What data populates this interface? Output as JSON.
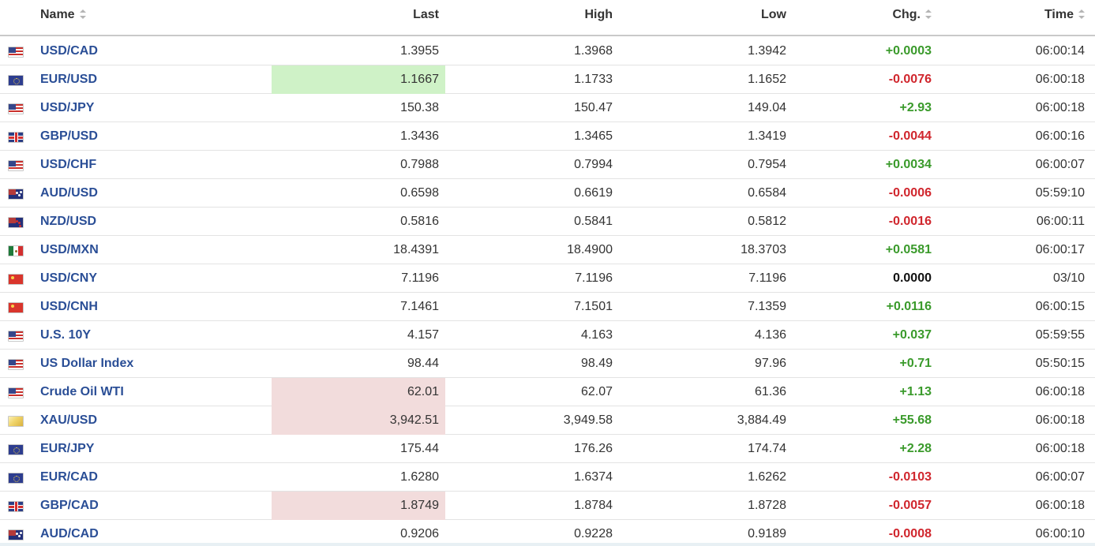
{
  "header": {
    "name": "Name",
    "last": "Last",
    "high": "High",
    "low": "Low",
    "chg": "Chg.",
    "time": "Time"
  },
  "colors": {
    "positive": "#3a9a2b",
    "negative": "#d0262d",
    "name_link": "#2a4e96",
    "highlight_up": "#cff2c7",
    "highlight_down": "#f2dcdc"
  },
  "rows": [
    {
      "flag": "us-flag-icon",
      "name": "USD/CAD",
      "last": "1.3955",
      "high": "1.3968",
      "low": "1.3942",
      "chg": "+0.0003",
      "time": "06:00:14"
    },
    {
      "flag": "eu-flag-icon",
      "name": "EUR/USD",
      "last": "1.1667",
      "high": "1.1733",
      "low": "1.1652",
      "chg": "-0.0076",
      "time": "06:00:18"
    },
    {
      "flag": "us-flag-icon",
      "name": "USD/JPY",
      "last": "150.38",
      "high": "150.47",
      "low": "149.04",
      "chg": "+2.93",
      "time": "06:00:18"
    },
    {
      "flag": "gb-flag-icon",
      "name": "GBP/USD",
      "last": "1.3436",
      "high": "1.3465",
      "low": "1.3419",
      "chg": "-0.0044",
      "time": "06:00:16"
    },
    {
      "flag": "us-flag-icon",
      "name": "USD/CHF",
      "last": "0.7988",
      "high": "0.7994",
      "low": "0.7954",
      "chg": "+0.0034",
      "time": "06:00:07"
    },
    {
      "flag": "au-flag-icon",
      "name": "AUD/USD",
      "last": "0.6598",
      "high": "0.6619",
      "low": "0.6584",
      "chg": "-0.0006",
      "time": "05:59:10"
    },
    {
      "flag": "nz-flag-icon",
      "name": "NZD/USD",
      "last": "0.5816",
      "high": "0.5841",
      "low": "0.5812",
      "chg": "-0.0016",
      "time": "06:00:11"
    },
    {
      "flag": "mx-flag-icon",
      "name": "USD/MXN",
      "last": "18.4391",
      "high": "18.4900",
      "low": "18.3703",
      "chg": "+0.0581",
      "time": "06:00:17"
    },
    {
      "flag": "cn-flag-icon",
      "name": "USD/CNY",
      "last": "7.1196",
      "high": "7.1196",
      "low": "7.1196",
      "chg": "0.0000",
      "time": "03/10"
    },
    {
      "flag": "cn-flag-icon",
      "name": "USD/CNH",
      "last": "7.1461",
      "high": "7.1501",
      "low": "7.1359",
      "chg": "+0.0116",
      "time": "06:00:15"
    },
    {
      "flag": "us-flag-icon",
      "name": "U.S. 10Y",
      "last": "4.157",
      "high": "4.163",
      "low": "4.136",
      "chg": "+0.037",
      "time": "05:59:55"
    },
    {
      "flag": "us-flag-icon",
      "name": "US Dollar Index",
      "last": "98.44",
      "high": "98.49",
      "low": "97.96",
      "chg": "+0.71",
      "time": "05:50:15"
    },
    {
      "flag": "us-flag-icon",
      "name": "Crude Oil WTI",
      "last": "62.01",
      "high": "62.07",
      "low": "61.36",
      "chg": "+1.13",
      "time": "06:00:18"
    },
    {
      "flag": "gold-icon",
      "name": "XAU/USD",
      "last": "3,942.51",
      "high": "3,949.58",
      "low": "3,884.49",
      "chg": "+55.68",
      "time": "06:00:18"
    },
    {
      "flag": "eu-flag-icon",
      "name": "EUR/JPY",
      "last": "175.44",
      "high": "176.26",
      "low": "174.74",
      "chg": "+2.28",
      "time": "06:00:18"
    },
    {
      "flag": "eu-flag-icon",
      "name": "EUR/CAD",
      "last": "1.6280",
      "high": "1.6374",
      "low": "1.6262",
      "chg": "-0.0103",
      "time": "06:00:07"
    },
    {
      "flag": "gb-flag-icon",
      "name": "GBP/CAD",
      "last": "1.8749",
      "high": "1.8784",
      "low": "1.8728",
      "chg": "-0.0057",
      "time": "06:00:18"
    },
    {
      "flag": "au-flag-icon",
      "name": "AUD/CAD",
      "last": "0.9206",
      "high": "0.9228",
      "low": "0.9189",
      "chg": "-0.0008",
      "time": "06:00:10"
    }
  ]
}
